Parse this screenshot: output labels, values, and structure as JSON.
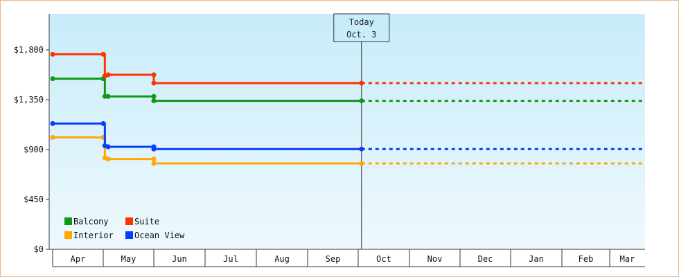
{
  "chart_data": {
    "type": "line",
    "subtype": "step",
    "x_axis": {
      "months": [
        "Apr",
        "May",
        "Jun",
        "Jul",
        "Aug",
        "Sep",
        "Oct",
        "Nov",
        "Dec",
        "Jan",
        "Feb",
        "Mar"
      ]
    },
    "y_axis": {
      "ticks": [
        "$0",
        "$450",
        "$900",
        "$1,350",
        "$1,800"
      ],
      "tick_values": [
        0,
        450,
        900,
        1350,
        1800
      ],
      "ylim": [
        0,
        2125
      ]
    },
    "today_marker": {
      "line1": "Today",
      "line2": "Oct. 3",
      "date": "Oct 3"
    },
    "background": {
      "top": "#c8ecfa",
      "bottom": "#eef9fd"
    },
    "legend": {
      "placement": "bottom-left"
    },
    "series": [
      {
        "name": "Balcony",
        "color": "#119911",
        "points": [
          {
            "date": "Apr 1",
            "y": 1540
          },
          {
            "date": "May 1",
            "y": 1540
          },
          {
            "date": "May 2",
            "y": 1380
          },
          {
            "date": "May 4",
            "y": 1380
          },
          {
            "date": "Jun 1",
            "y": 1380
          },
          {
            "date": "Jun 1",
            "y": 1340
          },
          {
            "date": "Oct 3",
            "y": 1340
          }
        ],
        "projected_to": "Mar 31"
      },
      {
        "name": "Suite",
        "color": "#ff3300",
        "points": [
          {
            "date": "Apr 1",
            "y": 1760
          },
          {
            "date": "May 1",
            "y": 1760
          },
          {
            "date": "May 2",
            "y": 1565
          },
          {
            "date": "May 4",
            "y": 1575
          },
          {
            "date": "Jun 1",
            "y": 1575
          },
          {
            "date": "Jun 1",
            "y": 1500
          },
          {
            "date": "Oct 3",
            "y": 1500
          }
        ],
        "projected_to": "Mar 31"
      },
      {
        "name": "Interior",
        "color": "#ffa800",
        "points": [
          {
            "date": "Apr 1",
            "y": 1010
          },
          {
            "date": "May 1",
            "y": 1010
          },
          {
            "date": "May 2",
            "y": 825
          },
          {
            "date": "May 4",
            "y": 815
          },
          {
            "date": "Jun 1",
            "y": 815
          },
          {
            "date": "Jun 1",
            "y": 775
          },
          {
            "date": "Oct 3",
            "y": 775
          }
        ],
        "projected_to": "Mar 31"
      },
      {
        "name": "Ocean View",
        "color": "#0a3cff",
        "points": [
          {
            "date": "Apr 1",
            "y": 1135
          },
          {
            "date": "May 1",
            "y": 1135
          },
          {
            "date": "May 2",
            "y": 935
          },
          {
            "date": "May 4",
            "y": 925
          },
          {
            "date": "Jun 1",
            "y": 925
          },
          {
            "date": "Jun 1",
            "y": 905
          },
          {
            "date": "Oct 3",
            "y": 905
          }
        ],
        "projected_to": "Mar 31"
      }
    ]
  }
}
